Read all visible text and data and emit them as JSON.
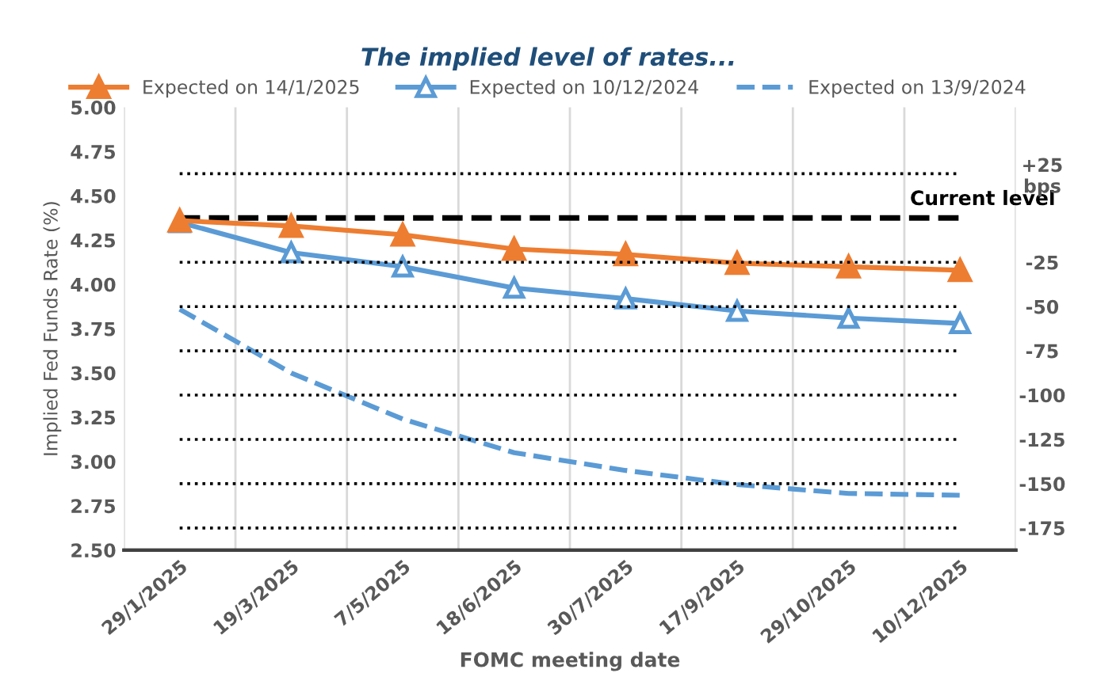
{
  "chart_data": {
    "type": "line",
    "title": "The implied level of rates...",
    "xlabel": "FOMC meeting date",
    "ylabel": "Implied Fed Funds Rate (%)",
    "categories": [
      "29/1/2025",
      "19/3/2025",
      "7/5/2025",
      "18/6/2025",
      "30/7/2025",
      "17/9/2025",
      "29/10/2025",
      "10/12/2025"
    ],
    "series": [
      {
        "name": "Expected on 14/1/2025",
        "color": "#ed7d31",
        "marker": "triangle",
        "line_style": "solid",
        "values": [
          4.36,
          4.33,
          4.28,
          4.2,
          4.17,
          4.12,
          4.1,
          4.08
        ]
      },
      {
        "name": "Expected on 10/12/2024",
        "color": "#5b9bd5",
        "marker": "triangle",
        "line_style": "solid",
        "values": [
          4.35,
          4.18,
          4.1,
          3.98,
          3.92,
          3.85,
          3.81,
          3.78
        ]
      },
      {
        "name": "Expected on 13/9/2024",
        "color": "#5b9bd5",
        "marker": "none",
        "line_style": "dashed",
        "values": [
          3.86,
          3.5,
          3.24,
          3.05,
          2.95,
          2.87,
          2.82,
          2.81
        ]
      }
    ],
    "ylim": [
      2.5,
      5.0
    ],
    "yticks": [
      {
        "value": 2.5,
        "label": "2.50"
      },
      {
        "value": 2.75,
        "label": "2.75"
      },
      {
        "value": 3.0,
        "label": "3.00"
      },
      {
        "value": 3.25,
        "label": "3.25"
      },
      {
        "value": 3.5,
        "label": "3.50"
      },
      {
        "value": 3.75,
        "label": "3.75"
      },
      {
        "value": 4.0,
        "label": "4.00"
      },
      {
        "value": 4.25,
        "label": "4.25"
      },
      {
        "value": 4.5,
        "label": "4.50"
      },
      {
        "value": 4.75,
        "label": "4.75"
      },
      {
        "value": 5.0,
        "label": "5.00"
      }
    ],
    "y2lim": [
      -187.5,
      62.5
    ],
    "y2ticks": [
      {
        "value": 25,
        "label": "+25\nbps"
      },
      -25,
      -50,
      -75,
      -100,
      -125,
      -150,
      -175
    ],
    "ref_lines": [
      {
        "axis": "y",
        "value": 4.375,
        "label": "Current level",
        "color": "#000000",
        "line_style": "dashed"
      },
      {
        "axis": "y2",
        "value": 25,
        "color": "#000000",
        "line_style": "dotted"
      },
      {
        "axis": "y2",
        "value": -25,
        "color": "#000000",
        "line_style": "dotted"
      },
      {
        "axis": "y2",
        "value": -50,
        "color": "#000000",
        "line_style": "dotted"
      },
      {
        "axis": "y2",
        "value": -75,
        "color": "#000000",
        "line_style": "dotted"
      },
      {
        "axis": "y2",
        "value": -100,
        "color": "#000000",
        "line_style": "dotted"
      },
      {
        "axis": "y2",
        "value": -125,
        "color": "#000000",
        "line_style": "dotted"
      },
      {
        "axis": "y2",
        "value": -150,
        "color": "#000000",
        "line_style": "dotted"
      },
      {
        "axis": "y2",
        "value": -175,
        "color": "#000000",
        "line_style": "dotted"
      }
    ],
    "grid": "x",
    "legend": "top"
  }
}
